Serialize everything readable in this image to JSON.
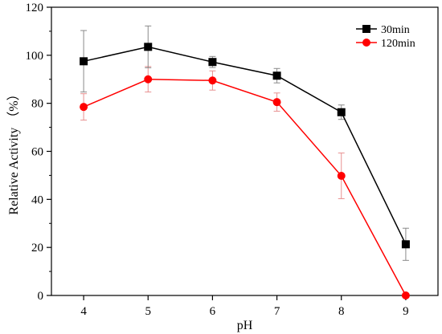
{
  "chart_data": {
    "type": "line",
    "title": "",
    "xlabel": "pH",
    "ylabel": "Relative Activity （%）",
    "x": [
      4,
      5,
      6,
      7,
      8,
      9
    ],
    "xlim": [
      3.5,
      9.5
    ],
    "ylim": [
      0,
      120
    ],
    "x_ticks": [
      "4",
      "5",
      "6",
      "7",
      "8",
      "9"
    ],
    "y_ticks": [
      "0",
      "20",
      "40",
      "60",
      "80",
      "100",
      "120"
    ],
    "grid": false,
    "legend_position": "top-right",
    "series": [
      {
        "name": "30min",
        "color": "#000000",
        "marker": "square",
        "values": [
          97.5,
          103.5,
          97.2,
          91.5,
          76.3,
          21.3
        ],
        "errors": [
          12.8,
          8.7,
          2.3,
          3.0,
          3.0,
          6.7
        ]
      },
      {
        "name": "120min",
        "color": "#ff0000",
        "marker": "circle",
        "values": [
          78.5,
          90.0,
          89.5,
          80.5,
          49.8,
          0.0
        ],
        "errors": [
          5.5,
          5.3,
          4.0,
          3.8,
          9.5,
          0.0
        ]
      }
    ]
  }
}
